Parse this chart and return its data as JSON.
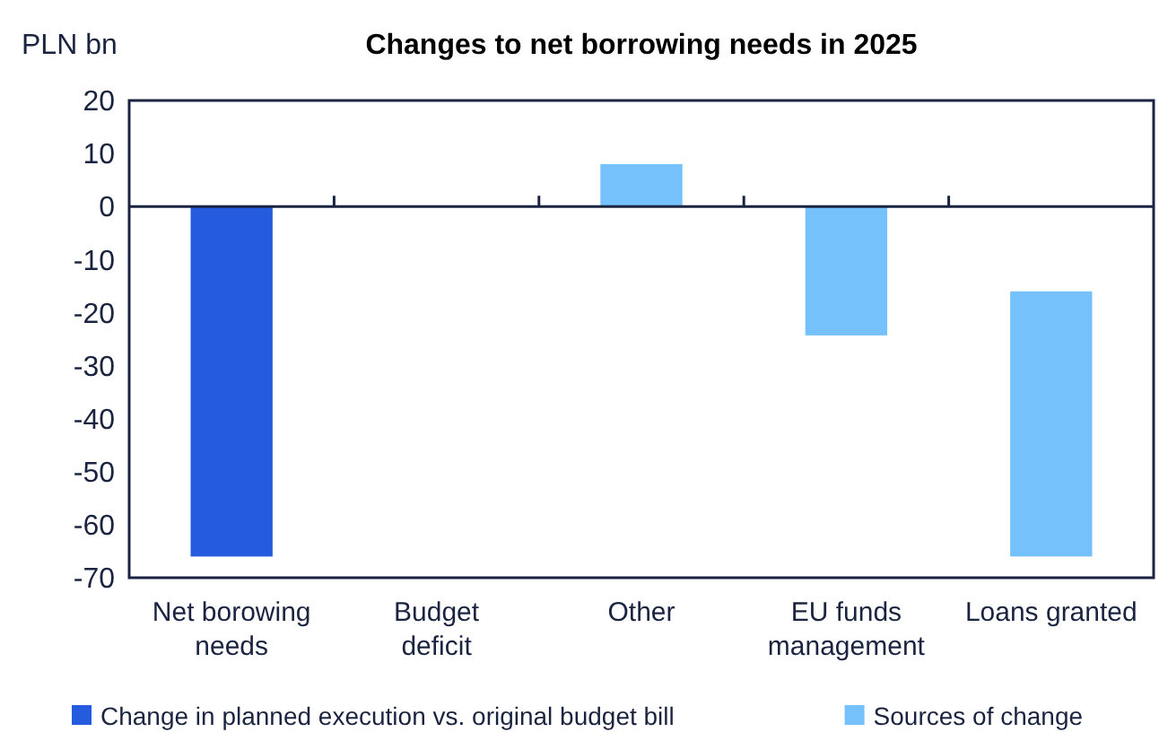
{
  "chart_data": {
    "type": "bar",
    "title": "Changes to net borrowing needs in 2025",
    "ylabel": "PLN bn",
    "categories": [
      "Net borowing needs",
      "Budget deficit",
      "Other",
      "EU funds management",
      "Loans granted"
    ],
    "series": [
      {
        "name": "Change in planned execution vs. original budget bill",
        "color": "#255bdf",
        "values": [
          -66,
          null,
          null,
          null,
          null
        ]
      },
      {
        "name": "Sources of change",
        "color": "#75c1fb",
        "values": [
          null,
          null,
          8,
          -24.3,
          -50
        ],
        "base": [
          null,
          null,
          0,
          0,
          -16
        ]
      }
    ],
    "ylim": [
      -70,
      20
    ],
    "yticks": [
      -70,
      -60,
      -50,
      -40,
      -30,
      -20,
      -10,
      0,
      10,
      20
    ],
    "legend": "bottom"
  }
}
